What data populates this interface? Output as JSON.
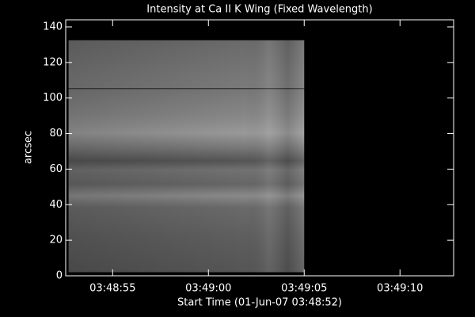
{
  "chart_data": {
    "type": "image",
    "title": "Intensity at Ca II K Wing (Fixed Wavelength)",
    "x_label": "Start Time (01-Jun-07 03:48:52)",
    "y_label": "arcsec",
    "xlim": [
      0.55,
      20.8
    ],
    "ylim": [
      0,
      144
    ],
    "xticks": [
      {
        "value": 3,
        "label": "03:48:55"
      },
      {
        "value": 8,
        "label": "03:49:00"
      },
      {
        "value": 13,
        "label": "03:49:05"
      },
      {
        "value": 18,
        "label": "03:49:10"
      }
    ],
    "yticks": [
      0,
      20,
      40,
      60,
      80,
      100,
      120,
      140
    ],
    "image": {
      "x": [
        0.7,
        13
      ],
      "y": [
        2,
        132.5
      ]
    }
  }
}
